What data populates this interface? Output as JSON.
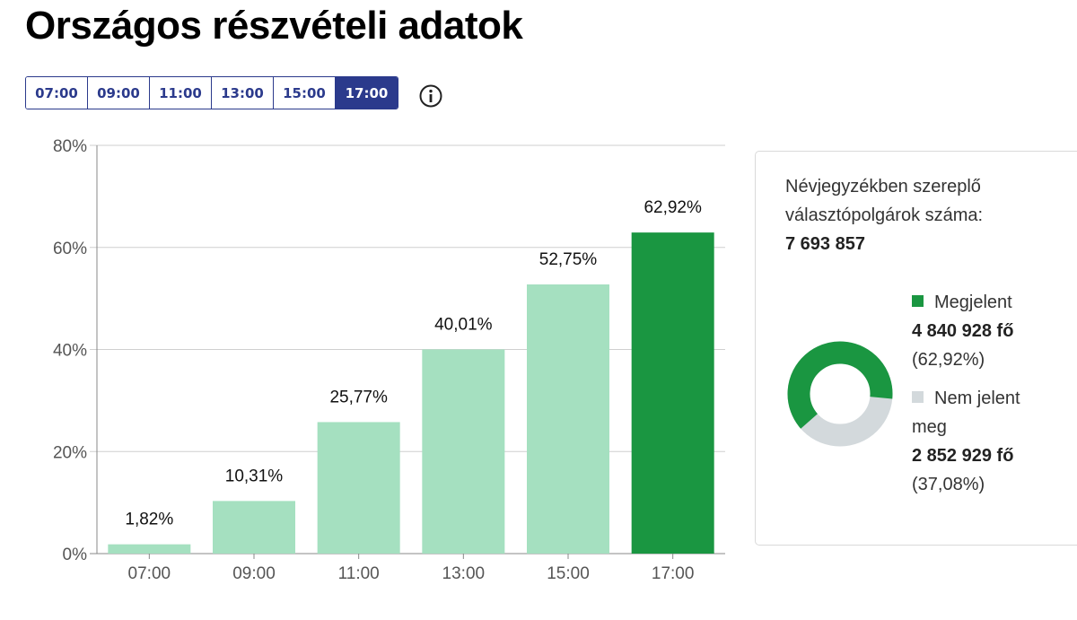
{
  "title": "Országos részvételi adatok",
  "tabs": [
    "07:00",
    "09:00",
    "11:00",
    "13:00",
    "15:00",
    "17:00"
  ],
  "active_tab": "17:00",
  "info_icon": "info-icon",
  "colors": {
    "bar": "#a5e0c0",
    "bar_active": "#1a9641",
    "not_voted": "#d3d9dc",
    "tab_accent": "#2b3a8c"
  },
  "chart_data": {
    "type": "bar",
    "categories": [
      "07:00",
      "09:00",
      "11:00",
      "13:00",
      "15:00",
      "17:00"
    ],
    "values": [
      1.82,
      10.31,
      25.77,
      40.01,
      52.75,
      62.92
    ],
    "value_labels": [
      "1,82%",
      "10,31%",
      "25,77%",
      "40,01%",
      "52,75%",
      "62,92%"
    ],
    "yticks": [
      "0%",
      "20%",
      "40%",
      "60%",
      "80%"
    ],
    "ylim": [
      0,
      80
    ],
    "grid": true,
    "highlight_index": 5
  },
  "panel": {
    "line1": "Névjegyzékben szereplő",
    "line2": "választópolgárok száma:",
    "total": "7 693 857",
    "voted": {
      "label": "Megjelent",
      "count": "4 840 928 fő",
      "pct": "(62,92%)",
      "value": 62.92
    },
    "not_voted": {
      "label_1": "Nem jelent",
      "label_2": "meg",
      "count": "2 852 929 fő",
      "pct": "(37,08%)",
      "value": 37.08
    }
  }
}
